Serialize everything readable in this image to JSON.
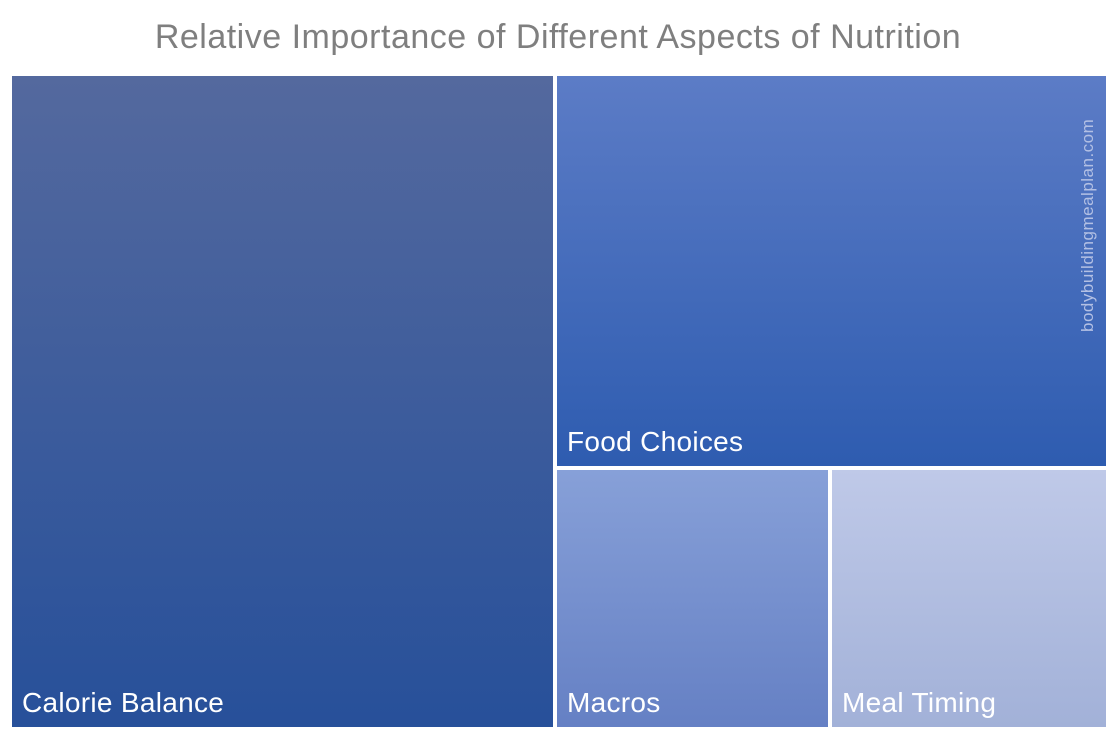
{
  "title": "Relative Importance of Different Aspects of Nutrition",
  "title_color": "#7f7f7f",
  "watermark": {
    "text": "bodybuildingmealplan.com",
    "color": "#b3c0e4"
  },
  "chart_data": {
    "type": "treemap",
    "title": "Relative Importance of Different Aspects of Nutrition",
    "categories": [
      "Calorie Balance",
      "Food Choices",
      "Macros",
      "Meal Timing"
    ],
    "values": [
      50,
      30,
      10,
      10
    ],
    "values_note": "relative area percent, estimated from cell sizes; no numeric labels shown in image",
    "legend": "none",
    "cells": [
      {
        "label": "Calorie Balance",
        "value": 50,
        "gradient_top": "#54699e",
        "gradient_bottom": "#27509a",
        "text_color": "#ffffff"
      },
      {
        "label": "Food Choices",
        "value": 30,
        "gradient_top": "#5c7cc6",
        "gradient_bottom": "#2e5cb0",
        "text_color": "#ffffff"
      },
      {
        "label": "Macros",
        "value": 10,
        "gradient_top": "#87a0d8",
        "gradient_bottom": "#6580c4",
        "text_color": "#ffffff"
      },
      {
        "label": "Meal Timing",
        "value": 10,
        "gradient_top": "#bfc9e8",
        "gradient_bottom": "#a2b1d8",
        "text_color": "#ffffff"
      }
    ]
  }
}
